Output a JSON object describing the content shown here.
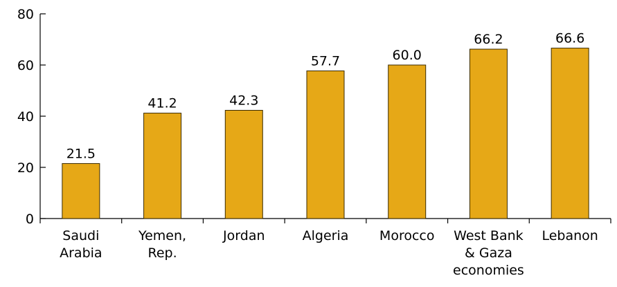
{
  "chart_data": {
    "type": "bar",
    "categories": [
      [
        "Saudi",
        "Arabia"
      ],
      [
        "Yemen,",
        "Rep."
      ],
      [
        "Jordan"
      ],
      [
        "Algeria"
      ],
      [
        "Morocco"
      ],
      [
        "West Bank",
        "& Gaza",
        "economies"
      ],
      [
        "Lebanon"
      ]
    ],
    "values": [
      21.5,
      41.2,
      42.3,
      57.7,
      60.0,
      66.2,
      66.6
    ],
    "data_labels": [
      "21.5",
      "41.2",
      "42.3",
      "57.7",
      "60.0",
      "66.2",
      "66.6"
    ],
    "ylim": [
      0,
      80
    ],
    "yticks": [
      0,
      20,
      40,
      60,
      80
    ],
    "title": "",
    "xlabel": "",
    "ylabel": "",
    "grid": false,
    "bar_color": "#E6A817"
  }
}
